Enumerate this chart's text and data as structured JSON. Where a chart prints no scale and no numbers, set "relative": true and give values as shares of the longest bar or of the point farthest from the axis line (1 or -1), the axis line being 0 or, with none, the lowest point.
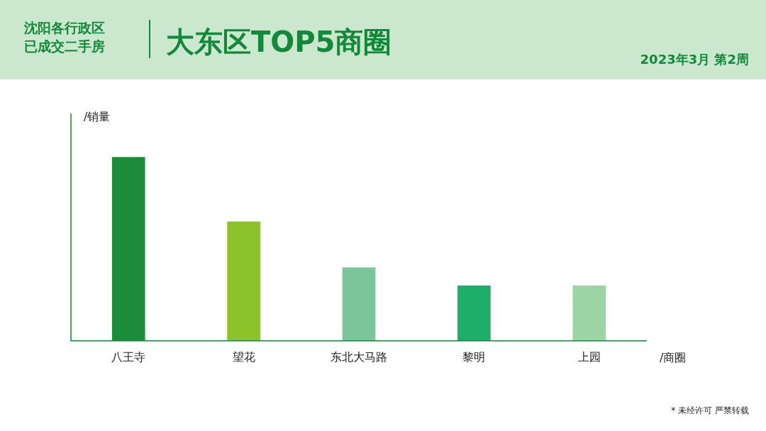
{
  "chart_data": {
    "type": "bar",
    "title": "大东区TOP5商圈",
    "subtitle": "沈阳各行政区已成交二手房",
    "ylabel": "/销量",
    "xlabel": "/商圈",
    "categories": [
      "八王寺",
      "望花",
      "东北大马路",
      "黎明",
      "上园"
    ],
    "values": [
      1,
      0.649,
      0.399,
      0.3,
      0.3
    ],
    "colors": [
      "#1a8c3c",
      "#8cc22a",
      "#7cc49a",
      "#1daf6a",
      "#9dd4a6"
    ],
    "relative": true,
    "legend": false,
    "grid": false,
    "annotations": [
      "2023年3月 第2周",
      "* 未经许可 严禁转载"
    ]
  }
}
